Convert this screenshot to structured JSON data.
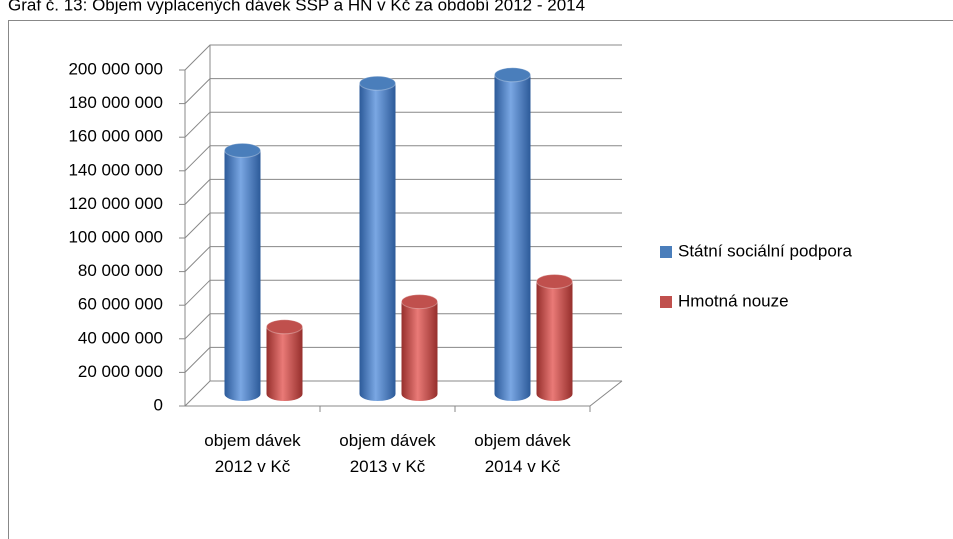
{
  "chart_data": {
    "type": "bar3d",
    "title": "Graf č. 13: Objem vyplacených dávek SSP a HN v Kč za období 2012 - 2014",
    "categories": [
      "objem dávek 2012 v Kč",
      "objem dávek 2013 v Kč",
      "objem dávek 2014 v Kč"
    ],
    "series": [
      {
        "name": "Státní sociální podpora",
        "color": "#4a7ebb",
        "values": [
          145000000,
          185000000,
          190000000
        ]
      },
      {
        "name": "Hmotná nouze",
        "color": "#c0504d",
        "values": [
          40000000,
          55000000,
          67000000
        ]
      }
    ],
    "ylim": [
      0,
      200000000
    ],
    "yticks": [
      0,
      {
        "value": 20000000,
        "label": "20 000 000"
      },
      {
        "value": 40000000,
        "label": "40 000 000"
      },
      {
        "value": 60000000,
        "label": "60 000 000"
      },
      {
        "value": 80000000,
        "label": "80 000 000"
      },
      {
        "value": 100000000,
        "label": "100 000 000"
      },
      {
        "value": 120000000,
        "label": "120 000 000"
      },
      {
        "value": 140000000,
        "label": "140 000 000"
      },
      {
        "value": 160000000,
        "label": "160 000 000"
      },
      {
        "value": 180000000,
        "label": "180 000 000"
      },
      {
        "value": 200000000,
        "label": "200 000 000"
      }
    ],
    "grid": true,
    "legend": "right"
  }
}
